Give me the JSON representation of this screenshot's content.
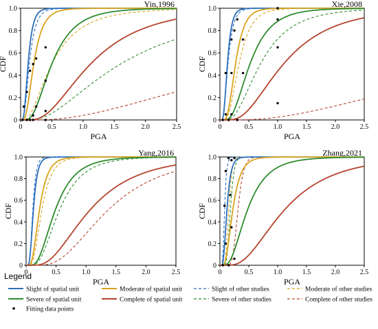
{
  "chart_data": [
    {
      "type": "line",
      "title": "Yin,1996",
      "xlabel": "PGA",
      "ylabel": "CDF",
      "xlim": [
        0,
        2.5
      ],
      "ylim": [
        0,
        1.0
      ],
      "xticks": [
        "0",
        "0.5",
        "1.0",
        "1.5",
        "2.0",
        "2.5"
      ],
      "yticks": [
        "0",
        "0.2",
        "0.4",
        "0.6",
        "0.8",
        "1.0"
      ],
      "series": [
        {
          "name": "Slight of spatial unit",
          "color": "#2a6ebb",
          "dash": "solid",
          "median": 0.12,
          "beta": 0.5
        },
        {
          "name": "Moderate of spatial unit",
          "color": "#d9a21b",
          "dash": "solid",
          "median": 0.21,
          "beta": 0.55
        },
        {
          "name": "Severe of spatial unit",
          "color": "#2e8b2e",
          "dash": "solid",
          "median": 0.5,
          "beta": 0.58
        },
        {
          "name": "Complete of spatial unit",
          "color": "#b5432c",
          "dash": "solid",
          "median": 1.12,
          "beta": 0.62
        },
        {
          "name": "Slight of other studies",
          "color": "#2a6ebb",
          "dash": "dashed",
          "median": 0.14,
          "beta": 0.55
        },
        {
          "name": "Moderate of other studies",
          "color": "#d9a21b",
          "dash": "dashed",
          "median": 0.5,
          "beta": 0.72
        },
        {
          "name": "Severe of other studies",
          "color": "#2e8b2e",
          "dash": "dashed",
          "median": 1.6,
          "beta": 0.75
        },
        {
          "name": "Complete of other studies",
          "color": "#b5432c",
          "dash": "dashed",
          "median": 4.4,
          "beta": 0.85
        }
      ],
      "points": [
        {
          "x": 0.03,
          "y": 0.0
        },
        {
          "x": 0.05,
          "y": 0.12
        },
        {
          "x": 0.1,
          "y": 0.25
        },
        {
          "x": 0.1,
          "y": 0.0
        },
        {
          "x": 0.15,
          "y": 0.44
        },
        {
          "x": 0.2,
          "y": 0.5
        },
        {
          "x": 0.25,
          "y": 0.55
        },
        {
          "x": 0.15,
          "y": 0.0
        },
        {
          "x": 0.2,
          "y": 0.04
        },
        {
          "x": 0.25,
          "y": 0.12
        },
        {
          "x": 0.4,
          "y": 0.65
        },
        {
          "x": 0.2,
          "y": 0.0
        },
        {
          "x": 0.4,
          "y": 0.35
        },
        {
          "x": 0.4,
          "y": 0.08
        },
        {
          "x": 0.4,
          "y": 0.0
        }
      ]
    },
    {
      "type": "line",
      "title": "Xie,2008",
      "xlabel": "PGA",
      "ylabel": "CDF",
      "xlim": [
        0,
        2.5
      ],
      "ylim": [
        0,
        1.0
      ],
      "xticks": [
        "0",
        "0.5",
        "1.0",
        "1.5",
        "2.0",
        "2.5"
      ],
      "yticks": [
        "0",
        "0.2",
        "0.4",
        "0.6",
        "0.8",
        "1.0"
      ],
      "series": [
        {
          "name": "Slight of spatial unit",
          "color": "#2a6ebb",
          "dash": "solid",
          "median": 0.13,
          "beta": 0.45
        },
        {
          "name": "Moderate of spatial unit",
          "color": "#d9a21b",
          "dash": "solid",
          "median": 0.27,
          "beta": 0.45
        },
        {
          "name": "Severe of spatial unit",
          "color": "#2e8b2e",
          "dash": "solid",
          "median": 0.52,
          "beta": 0.55
        },
        {
          "name": "Complete of spatial unit",
          "color": "#b5432c",
          "dash": "solid",
          "median": 1.1,
          "beta": 0.6
        },
        {
          "name": "Slight of other studies",
          "color": "#2a6ebb",
          "dash": "dashed",
          "median": 0.14,
          "beta": 0.5
        },
        {
          "name": "Moderate of other studies",
          "color": "#d9a21b",
          "dash": "dashed",
          "median": 0.33,
          "beta": 0.5
        },
        {
          "name": "Severe of other studies",
          "color": "#2e8b2e",
          "dash": "dashed",
          "median": 0.7,
          "beta": 0.6
        },
        {
          "name": "Complete of other studies",
          "color": "#b5432c",
          "dash": "dashed",
          "median": 5.3,
          "beta": 0.85
        }
      ],
      "points": [
        {
          "x": 0.05,
          "y": 0.0
        },
        {
          "x": 0.1,
          "y": 0.05
        },
        {
          "x": 0.1,
          "y": 0.42
        },
        {
          "x": 0.15,
          "y": 0.0
        },
        {
          "x": 0.2,
          "y": 0.42
        },
        {
          "x": 0.2,
          "y": 0.72
        },
        {
          "x": 0.25,
          "y": 0.8
        },
        {
          "x": 0.2,
          "y": 0.05
        },
        {
          "x": 0.3,
          "y": 0.9
        },
        {
          "x": 0.4,
          "y": 0.72
        },
        {
          "x": 0.4,
          "y": 0.42
        },
        {
          "x": 0.3,
          "y": 0.0
        },
        {
          "x": 1.0,
          "y": 1.0
        },
        {
          "x": 1.0,
          "y": 0.9
        },
        {
          "x": 1.0,
          "y": 0.65
        },
        {
          "x": 1.0,
          "y": 0.15
        }
      ]
    },
    {
      "type": "line",
      "title": "Yang,2016",
      "xlabel": "PGA",
      "ylabel": "CDF",
      "xlim": [
        0,
        2.5
      ],
      "ylim": [
        0,
        1.0
      ],
      "xticks": [
        "0",
        "0.5",
        "1.0",
        "1.5",
        "2.0",
        "2.5"
      ],
      "yticks": [
        "0",
        "0.2",
        "0.4",
        "0.6",
        "0.8",
        "1.0"
      ],
      "series": [
        {
          "name": "Slight of spatial unit",
          "color": "#2a6ebb",
          "dash": "solid",
          "median": 0.12,
          "beta": 0.45
        },
        {
          "name": "Moderate of spatial unit",
          "color": "#d9a21b",
          "dash": "solid",
          "median": 0.22,
          "beta": 0.5
        },
        {
          "name": "Severe of spatial unit",
          "color": "#2e8b2e",
          "dash": "solid",
          "median": 0.48,
          "beta": 0.55
        },
        {
          "name": "Complete of spatial unit",
          "color": "#b5432c",
          "dash": "solid",
          "median": 1.05,
          "beta": 0.6
        },
        {
          "name": "Slight of other studies",
          "color": "#2a6ebb",
          "dash": "dashed",
          "median": 0.11,
          "beta": 0.4
        },
        {
          "name": "Moderate of other studies",
          "color": "#d9a21b",
          "dash": "dashed",
          "median": 0.26,
          "beta": 0.5
        },
        {
          "name": "Severe of other studies",
          "color": "#2e8b2e",
          "dash": "dashed",
          "median": 0.55,
          "beta": 0.55
        },
        {
          "name": "Complete of other studies",
          "color": "#b5432c",
          "dash": "dashed",
          "median": 1.35,
          "beta": 0.55
        }
      ],
      "points": []
    },
    {
      "type": "line",
      "title": "Zhang,2021",
      "xlabel": "PGA",
      "ylabel": "CDF",
      "xlim": [
        0,
        2.5
      ],
      "ylim": [
        0,
        1.0
      ],
      "xticks": [
        "0",
        "0.5",
        "1.0",
        "1.5",
        "2.0",
        "2.5"
      ],
      "yticks": [
        "0",
        "0.2",
        "0.4",
        "0.6",
        "0.8",
        "1.0"
      ],
      "series": [
        {
          "name": "Slight of spatial unit",
          "color": "#2a6ebb",
          "dash": "solid",
          "median": 0.12,
          "beta": 0.45
        },
        {
          "name": "Moderate of spatial unit",
          "color": "#d9a21b",
          "dash": "solid",
          "median": 0.22,
          "beta": 0.5
        },
        {
          "name": "Severe of spatial unit",
          "color": "#2e8b2e",
          "dash": "solid",
          "median": 0.47,
          "beta": 0.58
        },
        {
          "name": "Complete of spatial unit",
          "color": "#b5432c",
          "dash": "solid",
          "median": 1.1,
          "beta": 0.6
        },
        {
          "name": "Slight of other studies",
          "color": "#2a6ebb",
          "dash": "dashed",
          "median": 0.08,
          "beta": 0.35
        },
        {
          "name": "Moderate of other studies",
          "color": "#d9a21b",
          "dash": "dashed",
          "median": 0.15,
          "beta": 0.3
        },
        {
          "name": "Severe of other studies",
          "color": "#2e8b2e",
          "dash": "dashed",
          "median": 0.18,
          "beta": 0.28
        },
        {
          "name": "Complete of other studies",
          "color": "#b5432c",
          "dash": "dashed",
          "median": 0.31,
          "beta": 0.25
        }
      ],
      "points": [
        {
          "x": 0.05,
          "y": 0.0
        },
        {
          "x": 0.08,
          "y": 0.55
        },
        {
          "x": 0.1,
          "y": 0.87
        },
        {
          "x": 0.15,
          "y": 0.99
        },
        {
          "x": 0.1,
          "y": 0.2
        },
        {
          "x": 0.15,
          "y": 0.0
        },
        {
          "x": 0.18,
          "y": 0.65
        },
        {
          "x": 0.2,
          "y": 0.97
        },
        {
          "x": 0.2,
          "y": 0.35
        },
        {
          "x": 0.25,
          "y": 0.99
        },
        {
          "x": 0.25,
          "y": 0.06
        }
      ]
    }
  ],
  "legend": {
    "title": "Legend",
    "position": "bottom",
    "items": [
      {
        "label": "Slight of spatial unit",
        "color": "#2a6ebb",
        "style": "solid"
      },
      {
        "label": "Moderate of spatial unit",
        "color": "#d9a21b",
        "style": "solid"
      },
      {
        "label": "Slight of other studies",
        "color": "#2a6ebb",
        "style": "dashed"
      },
      {
        "label": "Moderate of other studies",
        "color": "#d9a21b",
        "style": "dashed"
      },
      {
        "label": "Severe of spatial unit",
        "color": "#2e8b2e",
        "style": "solid"
      },
      {
        "label": "Complete of spatial unit",
        "color": "#b5432c",
        "style": "solid"
      },
      {
        "label": "Severe of other studies",
        "color": "#2e8b2e",
        "style": "dashed"
      },
      {
        "label": "Complete of other studies",
        "color": "#b5432c",
        "style": "dashed"
      },
      {
        "label": "Fitting data points",
        "color": "#000000",
        "style": "point"
      }
    ]
  }
}
